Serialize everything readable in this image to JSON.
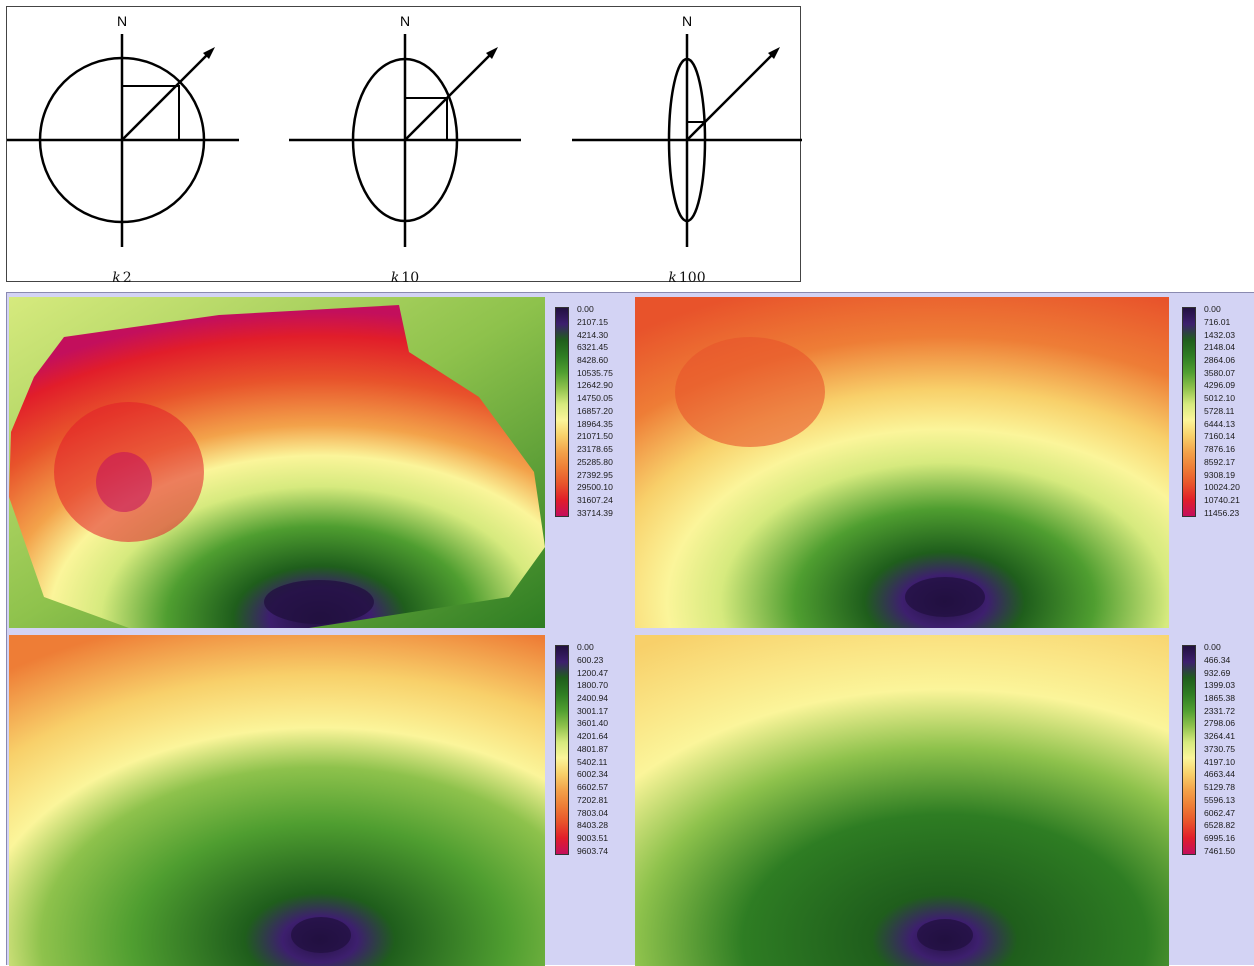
{
  "diagram": {
    "north_label": "N",
    "panels": [
      {
        "k_prefix": "k",
        "k_value": "2",
        "aspect": 2
      },
      {
        "k_prefix": "k",
        "k_value": "10",
        "aspect": 10
      },
      {
        "k_prefix": "k",
        "k_value": "100",
        "aspect": 100
      }
    ]
  },
  "maps": [
    {
      "legend": [
        "0.00",
        "2107.15",
        "4214.30",
        "6321.45",
        "8428.60",
        "10535.75",
        "12642.90",
        "14750.05",
        "16857.20",
        "18964.35",
        "21071.50",
        "23178.65",
        "25285.80",
        "27392.95",
        "29500.10",
        "31607.24",
        "33714.39"
      ]
    },
    {
      "legend": [
        "0.00",
        "716.01",
        "1432.03",
        "2148.04",
        "2864.06",
        "3580.07",
        "4296.09",
        "5012.10",
        "5728.11",
        "6444.13",
        "7160.14",
        "7876.16",
        "8592.17",
        "9308.19",
        "10024.20",
        "10740.21",
        "11456.23"
      ]
    },
    {
      "legend": [
        "0.00",
        "600.23",
        "1200.47",
        "1800.70",
        "2400.94",
        "3001.17",
        "3601.40",
        "4201.64",
        "4801.87",
        "5402.11",
        "6002.34",
        "6602.57",
        "7202.81",
        "7803.04",
        "8403.28",
        "9003.51",
        "9603.74"
      ]
    },
    {
      "legend": [
        "0.00",
        "466.34",
        "932.69",
        "1399.03",
        "1865.38",
        "2331.72",
        "2798.06",
        "3264.41",
        "3730.75",
        "4197.10",
        "4663.44",
        "5129.78",
        "5596.13",
        "6062.47",
        "6528.82",
        "6995.16",
        "7461.50"
      ]
    }
  ],
  "colors": {
    "ramp": [
      "#221040",
      "#3d1f6e",
      "#1f5e1c",
      "#2e7d23",
      "#4f9e30",
      "#8ec24c",
      "#d6ea7e",
      "#fbf59a",
      "#f8d06a",
      "#f3a24a",
      "#ee7d36",
      "#e8532b",
      "#e11d2a",
      "#c30f5c"
    ],
    "background": "#d3d3f4"
  }
}
